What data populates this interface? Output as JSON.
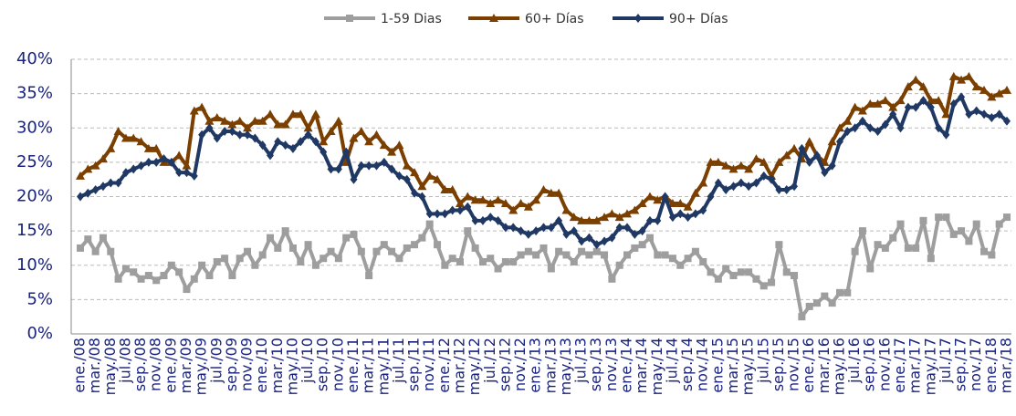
{
  "chart_data": {
    "type": "line",
    "categories": [
      "ene./08",
      null,
      "mar./08",
      null,
      "may./08",
      null,
      "jul./08",
      null,
      "sep./08",
      null,
      "nov./08",
      null,
      "ene./09",
      null,
      "mar./09",
      null,
      "may./09",
      null,
      "jul./09",
      null,
      "sep./09",
      null,
      "nov./09",
      null,
      "ene./10",
      null,
      "mar./10",
      null,
      "may./10",
      null,
      "jul./10",
      null,
      "sep./10",
      null,
      "nov./10",
      null,
      "ene./11",
      null,
      "mar./11",
      null,
      "may./11",
      null,
      "jul./11",
      null,
      "sep./11",
      null,
      "nov./11",
      null,
      "ene./12",
      null,
      "mar./12",
      null,
      "may./12",
      null,
      "jul./12",
      null,
      "sep./12",
      null,
      "nov./12",
      null,
      "ene./13",
      null,
      "mar./13",
      null,
      "may./13",
      null,
      "jul./13",
      null,
      "sep./13",
      null,
      "nov./13",
      null,
      "ene./14",
      null,
      "mar./14",
      null,
      "may./14",
      null,
      "jul./14",
      null,
      "sep./14",
      null,
      "nov./14",
      null,
      "ene./15",
      null,
      "mar./15",
      null,
      "may./15",
      null,
      "jul./15",
      null,
      "sep./15",
      null,
      "nov./15",
      null,
      "ene./16",
      null,
      "mar./16",
      null,
      "may./16",
      null,
      "jul./16",
      null,
      "sep./16",
      null,
      "nov./16",
      null,
      "ene./17",
      null,
      "mar./17",
      null,
      "may./17",
      null,
      "jul./17",
      null,
      "sep./17",
      null,
      "nov./17",
      null,
      "ene./18",
      null,
      "mar./18"
    ],
    "series": [
      {
        "name": "1-59 Dias",
        "color": "#9e9e9e",
        "marker": "square",
        "values": [
          12.5,
          13.8,
          12,
          14,
          12,
          8,
          9.5,
          9,
          8,
          8.5,
          7.8,
          8.5,
          10,
          9,
          6.5,
          8,
          10,
          8.5,
          10.5,
          11,
          8.5,
          11,
          12,
          10,
          11.5,
          14,
          12.5,
          15,
          12.5,
          10.5,
          13,
          10,
          11,
          12,
          11,
          14,
          14.5,
          12,
          8.5,
          12,
          13,
          12,
          11,
          12.5,
          13,
          14,
          16,
          13,
          10,
          11,
          10.5,
          15,
          12.5,
          10.5,
          11,
          9.5,
          10.5,
          10.5,
          11.5,
          12,
          11.5,
          12.5,
          9.5,
          12,
          11.5,
          10.5,
          12,
          11.5,
          12,
          11.5,
          8,
          10,
          11.5,
          12.5,
          13,
          14,
          11.5,
          11.5,
          11,
          10,
          11,
          12,
          10.5,
          9,
          8,
          9.5,
          8.5,
          9,
          9,
          8,
          7,
          7.5,
          13,
          9,
          8.5,
          2.5,
          4,
          4.5,
          5.5,
          4.5,
          6,
          6,
          12,
          15,
          9.5,
          13,
          12.5,
          14,
          16,
          12.5,
          12.5,
          16.5,
          11,
          17,
          17,
          14.5,
          15,
          13.5,
          16,
          12,
          11.5,
          16,
          17
        ]
      },
      {
        "name": "60+ Días",
        "color": "#7b3f00",
        "marker": "triangle",
        "values": [
          23,
          24,
          24.5,
          25.5,
          27,
          29.5,
          28.5,
          28.5,
          28,
          27,
          27,
          25,
          25,
          26,
          24.5,
          32.5,
          33,
          31,
          31.5,
          31,
          30.5,
          31,
          30,
          31,
          31,
          32,
          30.5,
          30.5,
          32,
          32,
          30,
          32,
          28,
          29.5,
          31,
          25,
          28.5,
          29.5,
          28,
          29,
          27.5,
          26.5,
          27.5,
          24.5,
          23.5,
          21.5,
          23,
          22.5,
          21,
          21,
          19,
          20,
          19.5,
          19.5,
          19,
          19.5,
          19,
          18,
          19,
          18.5,
          19.5,
          21,
          20.5,
          20.5,
          18,
          17,
          16.5,
          16.5,
          16.5,
          17,
          17.5,
          17,
          17.5,
          18,
          19,
          20,
          19.5,
          20,
          19,
          19,
          18.5,
          20.5,
          22,
          25,
          25,
          24.5,
          24,
          24.5,
          24,
          25.5,
          25,
          23,
          25,
          26,
          27,
          25.5,
          28,
          26,
          25,
          28,
          30,
          31,
          33,
          32.5,
          33.5,
          33.5,
          34,
          33,
          34,
          36,
          37,
          36,
          34,
          34,
          32,
          37.5,
          37,
          37.5,
          36,
          35.5,
          34.5,
          35,
          35.5
        ]
      },
      {
        "name": "90+ Días",
        "color": "#1f3864",
        "marker": "diamond",
        "values": [
          20,
          20.5,
          21,
          21.5,
          22,
          22,
          23.5,
          24,
          24.5,
          25,
          25,
          25.5,
          25,
          23.5,
          23.5,
          23,
          29,
          30,
          28.5,
          29.5,
          29.5,
          29,
          29,
          28.5,
          27.5,
          26,
          28,
          27.5,
          27,
          28,
          29,
          28,
          26.5,
          24,
          24,
          26.5,
          22.5,
          24.5,
          24.5,
          24.5,
          25,
          24,
          23,
          22.5,
          20.5,
          20,
          17.5,
          17.5,
          17.5,
          18,
          18,
          18.5,
          16.5,
          16.5,
          17,
          16.5,
          15.5,
          15.5,
          15,
          14.5,
          15,
          15.5,
          15.5,
          16.5,
          14.5,
          15,
          13.5,
          14,
          13,
          13.5,
          14,
          15.5,
          15.5,
          14.5,
          15,
          16.5,
          16.5,
          20,
          17,
          17.5,
          17,
          17.5,
          18,
          20,
          22,
          21,
          21.5,
          22,
          21.5,
          22,
          23,
          22.5,
          21,
          21,
          21.5,
          27,
          25,
          26,
          23.5,
          24.5,
          28,
          29.5,
          30,
          31,
          30,
          29.5,
          30.5,
          32,
          30,
          33,
          33,
          34,
          33,
          30,
          29,
          33.5,
          34.5,
          32,
          32.5,
          32,
          31.5,
          32,
          31
        ]
      }
    ],
    "ylim": [
      0,
      40
    ],
    "yticks": [
      {
        "value": 0,
        "label": "0%"
      },
      {
        "value": 5,
        "label": "5%"
      },
      {
        "value": 10,
        "label": "10%"
      },
      {
        "value": 15,
        "label": "15%"
      },
      {
        "value": 20,
        "label": "20%"
      },
      {
        "value": 25,
        "label": "25%"
      },
      {
        "value": 30,
        "label": "30%"
      },
      {
        "value": 35,
        "label": "35%"
      },
      {
        "value": 40,
        "label": "40%"
      }
    ],
    "grid": true,
    "legend": "top"
  }
}
